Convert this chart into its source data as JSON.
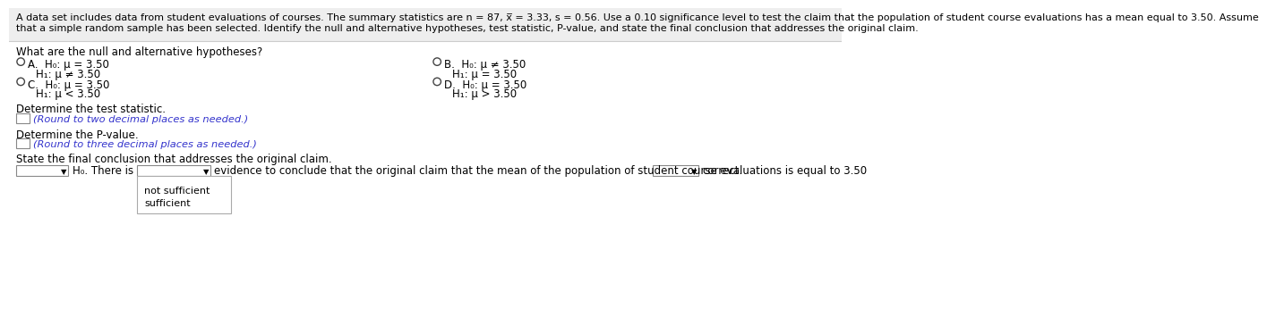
{
  "bg_color": "#ffffff",
  "header_bg": "#f0f0f0",
  "header_line1": "A data set includes data from student evaluations of courses. The summary statistics are n = 87, Ϲ = 3.33, s = 0.56. Use a 0.10 significance level to test the claim that the population of student course evaluations has a mean equal to 3.50. Assume",
  "header_line2": "that a simple random sample has been selected. Identify the null and alternative hypotheses, test statistic, P-value, and state the final conclusion that addresses the original claim.",
  "question": "What are the null and alternative hypotheses?",
  "optA_h0": "H₀: μ = 3.50",
  "optA_h1": "H₁: μ ≠ 3.50",
  "optB_h0": "H₀: μ ≠ 3.50",
  "optB_h1": "H₁: μ = 3.50",
  "optC_h0": "H₀: μ = 3.50",
  "optC_h1": "H₁: μ < 3.50",
  "optD_h0": "H₀: μ = 3.50",
  "optD_h1": "H₁: μ > 3.50",
  "det_test_stat": "Determine the test statistic.",
  "round_two": "(Round to two decimal places as needed.)",
  "det_pval": "Determine the P-value.",
  "round_three": "(Round to three decimal places as needed.)",
  "state_final": "State the final conclusion that addresses the original claim.",
  "h0_there_is": "H₀. There is",
  "evidence_text": "evidence to conclude that the original claim that the mean of the population of student course evaluations is equal to 3.50",
  "correct_text": "correct.",
  "not_sufficient": "not sufficient",
  "sufficient": "sufficient",
  "text_color": "#000000",
  "blue_color": "#3333cc",
  "box_edge_color": "#888888",
  "sep_color": "#cccccc",
  "font_size_header": 8.0,
  "font_size_body": 8.5,
  "font_size_blue": 8.2,
  "xbar": "x̅"
}
